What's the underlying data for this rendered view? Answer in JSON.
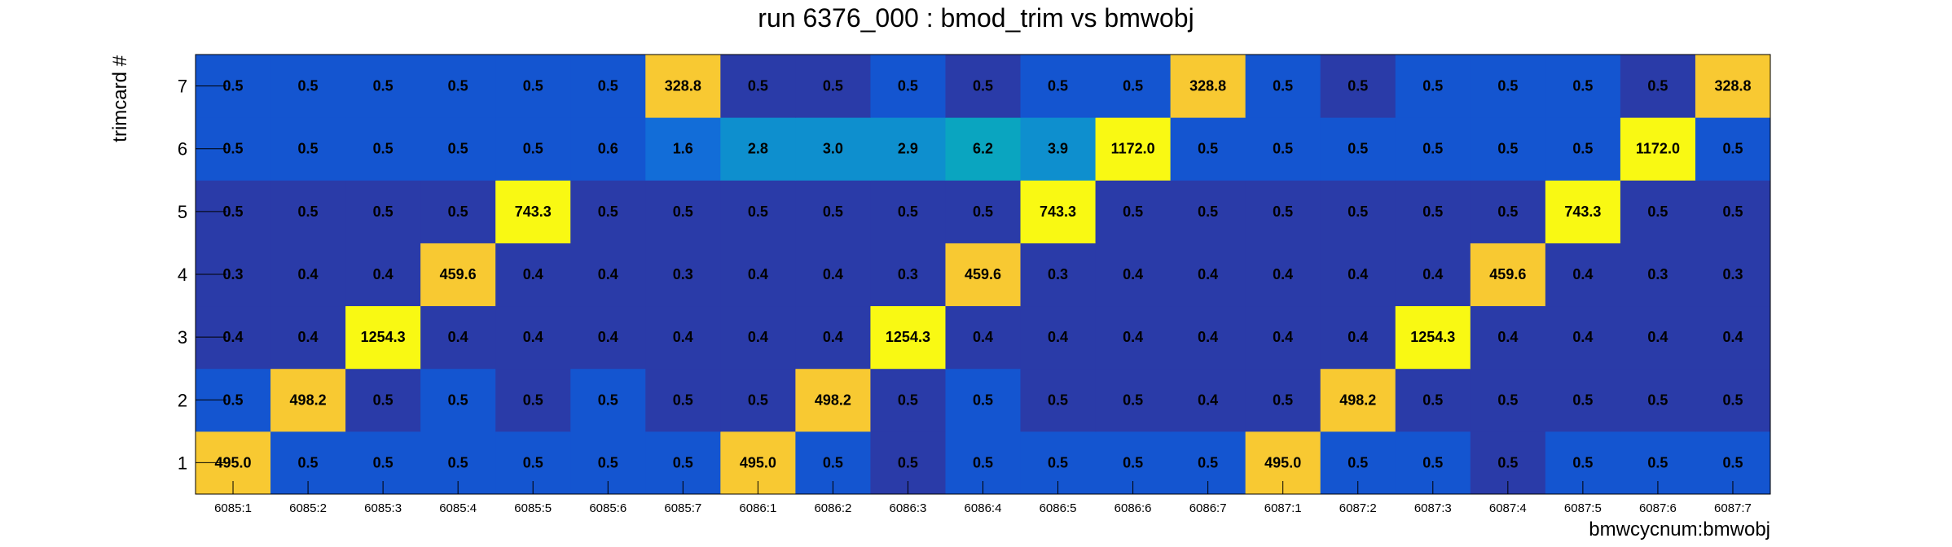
{
  "chart_data": {
    "type": "heatmap",
    "title": "run 6376_000 : bmod_trim vs bmwobj",
    "xlabel": "bmwcycnum:bmwobj",
    "ylabel": "trimcard #",
    "x_categories": [
      "6085:1",
      "6085:2",
      "6085:3",
      "6085:4",
      "6085:5",
      "6085:6",
      "6085:7",
      "6086:1",
      "6086:2",
      "6086:3",
      "6086:4",
      "6086:5",
      "6086:6",
      "6086:7",
      "6087:1",
      "6087:2",
      "6087:3",
      "6087:4",
      "6087:5",
      "6087:6",
      "6087:7"
    ],
    "y_categories": [
      "1",
      "2",
      "3",
      "4",
      "5",
      "6",
      "7"
    ],
    "values": [
      [
        "495.0",
        "0.5",
        "0.5",
        "0.5",
        "0.5",
        "0.5",
        "0.5",
        "495.0",
        "0.5",
        "0.5",
        "0.5",
        "0.5",
        "0.5",
        "0.5",
        "495.0",
        "0.5",
        "0.5",
        "0.5",
        "0.5",
        "0.5",
        "0.5"
      ],
      [
        "0.5",
        "498.2",
        "0.5",
        "0.5",
        "0.5",
        "0.5",
        "0.5",
        "0.5",
        "498.2",
        "0.5",
        "0.5",
        "0.5",
        "0.5",
        "0.4",
        "0.5",
        "498.2",
        "0.5",
        "0.5",
        "0.5",
        "0.5",
        "0.5"
      ],
      [
        "0.4",
        "0.4",
        "1254.3",
        "0.4",
        "0.4",
        "0.4",
        "0.4",
        "0.4",
        "0.4",
        "1254.3",
        "0.4",
        "0.4",
        "0.4",
        "0.4",
        "0.4",
        "0.4",
        "1254.3",
        "0.4",
        "0.4",
        "0.4",
        "0.4"
      ],
      [
        "0.3",
        "0.4",
        "0.4",
        "459.6",
        "0.4",
        "0.4",
        "0.3",
        "0.4",
        "0.4",
        "0.3",
        "459.6",
        "0.3",
        "0.4",
        "0.4",
        "0.4",
        "0.4",
        "0.4",
        "459.6",
        "0.4",
        "0.3",
        "0.3"
      ],
      [
        "0.5",
        "0.5",
        "0.5",
        "0.5",
        "743.3",
        "0.5",
        "0.5",
        "0.5",
        "0.5",
        "0.5",
        "0.5",
        "743.3",
        "0.5",
        "0.5",
        "0.5",
        "0.5",
        "0.5",
        "0.5",
        "743.3",
        "0.5",
        "0.5"
      ],
      [
        "0.5",
        "0.5",
        "0.5",
        "0.5",
        "0.5",
        "0.6",
        "1.6",
        "2.8",
        "3.0",
        "2.9",
        "6.2",
        "3.9",
        "1172.0",
        "0.5",
        "0.5",
        "0.5",
        "0.5",
        "0.5",
        "0.5",
        "1172.0",
        "0.5"
      ],
      [
        "0.5",
        "0.5",
        "0.5",
        "0.5",
        "0.5",
        "0.5",
        "328.8",
        "0.5",
        "0.5",
        "0.5",
        "0.5",
        "0.5",
        "0.5",
        "328.8",
        "0.5",
        "0.5",
        "0.5",
        "0.5",
        "0.5",
        "0.5",
        "328.8"
      ]
    ],
    "colors": [
      [
        "#f8c932",
        "#1455d0",
        "#1455d0",
        "#1455d0",
        "#1455d0",
        "#1455d0",
        "#1455d0",
        "#f8c932",
        "#1455d0",
        "#2a3ba8",
        "#1455d0",
        "#1455d0",
        "#1455d0",
        "#1455d0",
        "#f8c932",
        "#1455d0",
        "#1455d0",
        "#2a3ba8",
        "#1455d0",
        "#1455d0",
        "#1455d0"
      ],
      [
        "#1455d0",
        "#f8c932",
        "#2a3ba8",
        "#1455d0",
        "#2a3ba8",
        "#1455d0",
        "#2a3ba8",
        "#2a3ba8",
        "#f8c932",
        "#2a3ba8",
        "#1455d0",
        "#2a3ba8",
        "#2a3ba8",
        "#2a3ba8",
        "#2a3ba8",
        "#f8c932",
        "#2a3ba8",
        "#2a3ba8",
        "#2a3ba8",
        "#2a3ba8",
        "#2a3ba8"
      ],
      [
        "#2a3ba8",
        "#2a3ba8",
        "#f9f913",
        "#2a3ba8",
        "#2a3ba8",
        "#2a3ba8",
        "#2a3ba8",
        "#2a3ba8",
        "#2a3ba8",
        "#f9f913",
        "#2a3ba8",
        "#2a3ba8",
        "#2a3ba8",
        "#2a3ba8",
        "#2a3ba8",
        "#2a3ba8",
        "#f9f913",
        "#2a3ba8",
        "#2a3ba8",
        "#2a3ba8",
        "#2a3ba8"
      ],
      [
        "#2a3ba8",
        "#2a3ba8",
        "#2a3ba8",
        "#f8c932",
        "#2a3ba8",
        "#2a3ba8",
        "#2a3ba8",
        "#2a3ba8",
        "#2a3ba8",
        "#2a3ba8",
        "#f8c932",
        "#2a3ba8",
        "#2a3ba8",
        "#2a3ba8",
        "#2a3ba8",
        "#2a3ba8",
        "#2a3ba8",
        "#f8c932",
        "#2a3ba8",
        "#2a3ba8",
        "#2a3ba8"
      ],
      [
        "#2a3ba8",
        "#2a3ba8",
        "#2a3ba8",
        "#2a3ba8",
        "#f9f913",
        "#2a3ba8",
        "#2a3ba8",
        "#2a3ba8",
        "#2a3ba8",
        "#2a3ba8",
        "#2a3ba8",
        "#f9f913",
        "#2a3ba8",
        "#2a3ba8",
        "#2a3ba8",
        "#2a3ba8",
        "#2a3ba8",
        "#2a3ba8",
        "#f9f913",
        "#2a3ba8",
        "#2a3ba8"
      ],
      [
        "#1455d0",
        "#1455d0",
        "#1455d0",
        "#1455d0",
        "#1455d0",
        "#1455d0",
        "#126dd8",
        "#0e8fce",
        "#0e8fce",
        "#0e8fce",
        "#0aa5c0",
        "#0e8fce",
        "#f9f913",
        "#1455d0",
        "#1455d0",
        "#1455d0",
        "#1455d0",
        "#1455d0",
        "#1455d0",
        "#f9f913",
        "#1455d0"
      ],
      [
        "#1455d0",
        "#1455d0",
        "#1455d0",
        "#1455d0",
        "#1455d0",
        "#1455d0",
        "#f8c932",
        "#2a3ba8",
        "#2a3ba8",
        "#1455d0",
        "#2a3ba8",
        "#1455d0",
        "#1455d0",
        "#f8c932",
        "#1455d0",
        "#2a3ba8",
        "#1455d0",
        "#1455d0",
        "#1455d0",
        "#2a3ba8",
        "#f8c932"
      ]
    ],
    "grid": false,
    "legend": "none"
  }
}
